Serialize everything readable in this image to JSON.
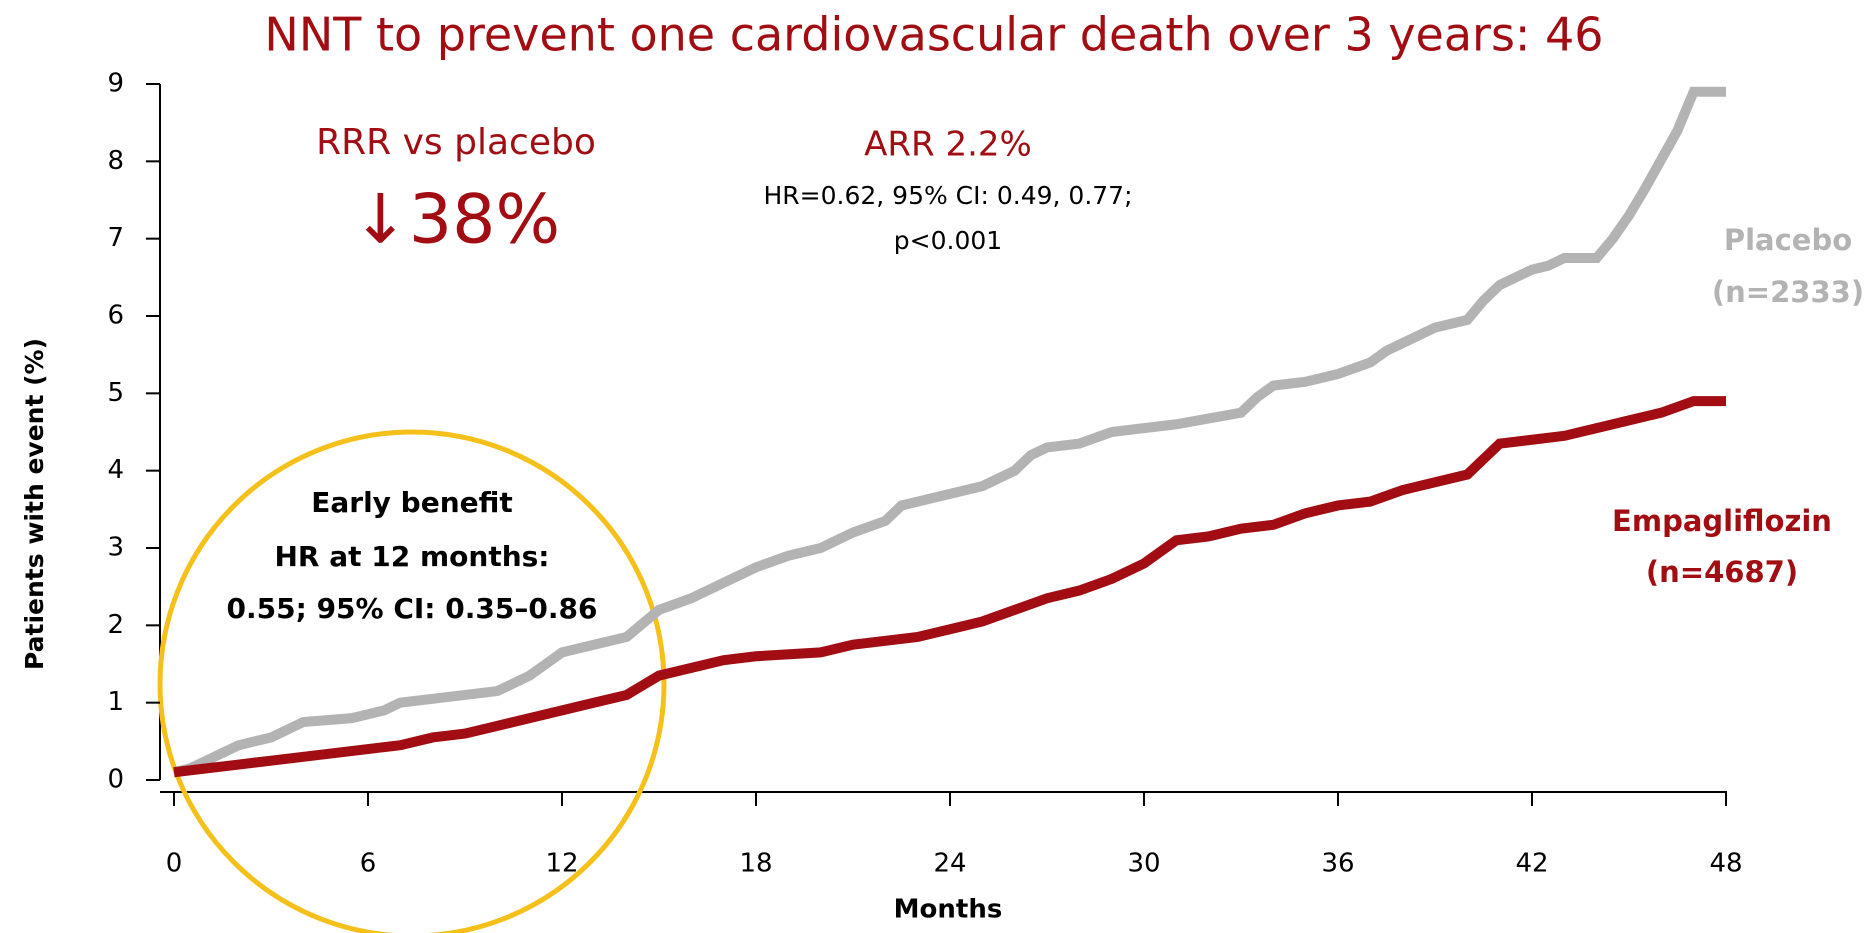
{
  "chart_data": {
    "type": "line",
    "title": "NNT to prevent one cardiovascular death over 3 years: 46",
    "x_label": "Months",
    "y_label": "Patients with event (%)",
    "xlim": [
      0,
      48
    ],
    "xticks": [
      0,
      6,
      12,
      18,
      24,
      30,
      36,
      42,
      48
    ],
    "ylim": [
      0,
      9
    ],
    "yticks": [
      0,
      1,
      2,
      3,
      4,
      5,
      6,
      7,
      8,
      9
    ],
    "grid": false,
    "series": [
      {
        "name": "Placebo",
        "n_label": "(n=2333)",
        "color": "#b3b3b3",
        "x": [
          0,
          0.5,
          1,
          1.5,
          2,
          3,
          3.5,
          4,
          5.5,
          6.5,
          7,
          8,
          9,
          10,
          10.5,
          11,
          11.5,
          12,
          13,
          14,
          15,
          16,
          17,
          18,
          19,
          20,
          21,
          22,
          22.5,
          23,
          24,
          25,
          26,
          26.5,
          27,
          28,
          29,
          30,
          31,
          33,
          33.5,
          34,
          35,
          36,
          37,
          37.5,
          38,
          39,
          40,
          40.5,
          41,
          42,
          42.5,
          43,
          44,
          44.5,
          45,
          45.5,
          46.5,
          47,
          48
        ],
        "values": [
          0.1,
          0.15,
          0.25,
          0.35,
          0.45,
          0.55,
          0.65,
          0.75,
          0.8,
          0.9,
          1.0,
          1.05,
          1.1,
          1.15,
          1.25,
          1.35,
          1.5,
          1.65,
          1.75,
          1.85,
          2.2,
          2.35,
          2.55,
          2.75,
          2.9,
          3.0,
          3.2,
          3.35,
          3.55,
          3.6,
          3.7,
          3.8,
          4.0,
          4.2,
          4.3,
          4.35,
          4.5,
          4.55,
          4.6,
          4.75,
          4.95,
          5.1,
          5.15,
          5.25,
          5.4,
          5.55,
          5.65,
          5.85,
          5.95,
          6.2,
          6.4,
          6.6,
          6.65,
          6.75,
          6.75,
          7.0,
          7.3,
          7.65,
          8.4,
          8.9,
          8.9
        ]
      },
      {
        "name": "Empagliflozin",
        "n_label": "(n=4687)",
        "color": "#a10d12",
        "x": [
          0,
          1,
          2,
          3,
          4,
          5,
          6,
          7,
          8,
          9,
          10,
          11,
          12,
          13,
          14,
          15,
          16,
          17,
          18,
          20,
          21,
          22,
          23,
          24,
          25,
          26,
          27,
          28,
          29,
          30,
          31,
          32,
          33,
          34,
          35,
          36,
          37,
          38,
          39,
          40,
          41,
          42,
          43,
          44,
          45,
          46,
          47,
          48
        ],
        "values": [
          0.1,
          0.15,
          0.2,
          0.25,
          0.3,
          0.35,
          0.4,
          0.45,
          0.55,
          0.6,
          0.7,
          0.8,
          0.9,
          1.0,
          1.1,
          1.35,
          1.45,
          1.55,
          1.6,
          1.65,
          1.75,
          1.8,
          1.85,
          1.95,
          2.05,
          2.2,
          2.35,
          2.45,
          2.6,
          2.8,
          3.1,
          3.15,
          3.25,
          3.3,
          3.45,
          3.55,
          3.6,
          3.75,
          3.85,
          3.95,
          4.35,
          4.4,
          4.45,
          4.55,
          4.65,
          4.75,
          4.9,
          4.9
        ]
      }
    ],
    "annotations": {
      "rrr_label": "RRR vs placebo",
      "rrr_value": "↓38%",
      "arr": "ARR 2.2%",
      "hr": "HR=0.62, 95% CI: 0.49, 0.77;",
      "p": "p<0.001",
      "early_benefit": [
        "Early benefit",
        "HR at 12 months:",
        "0.55; 95% CI: 0.35–0.86"
      ]
    }
  }
}
